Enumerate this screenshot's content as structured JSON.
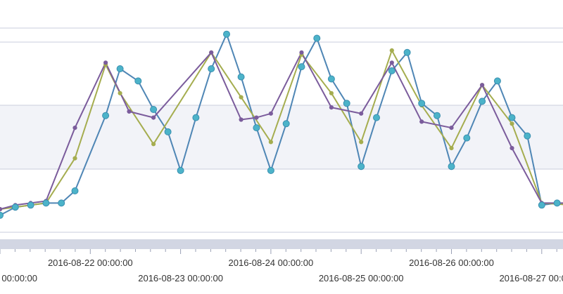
{
  "chart_data": {
    "type": "line",
    "title": "",
    "xlabel": "",
    "ylabel": "",
    "grid": true,
    "x_tick_labels": [
      {
        "text": "00:00:00",
        "time": 0,
        "row": 2
      },
      {
        "text": "2016-08-22 00:00:00",
        "time": 1.0,
        "row": 1
      },
      {
        "text": "2016-08-23 00:00:00",
        "time": 2.0,
        "row": 2
      },
      {
        "text": "2016-08-24 00:00:00",
        "time": 3.0,
        "row": 1
      },
      {
        "text": "2016-08-25 00:00:00",
        "time": 4.0,
        "row": 2
      },
      {
        "text": "2016-08-26 00:00:00",
        "time": 5.0,
        "row": 1
      },
      {
        "text": "2016-08-27 00:00:00",
        "time": 6.0,
        "row": 2
      }
    ],
    "series": [
      {
        "color": "#4f86b5",
        "marker": "large",
        "points": [
          [
            0.0,
            0.08
          ],
          [
            0.17,
            0.12
          ],
          [
            0.34,
            0.13
          ],
          [
            0.51,
            0.14
          ],
          [
            0.68,
            0.14
          ],
          [
            0.83,
            0.2
          ],
          [
            1.17,
            0.57
          ],
          [
            1.33,
            0.8
          ],
          [
            1.53,
            0.74
          ],
          [
            1.7,
            0.6
          ],
          [
            1.86,
            0.49
          ],
          [
            2.0,
            0.3
          ],
          [
            2.17,
            0.56
          ],
          [
            2.34,
            0.8
          ],
          [
            2.51,
            0.97
          ],
          [
            2.67,
            0.76
          ],
          [
            2.84,
            0.51
          ],
          [
            3.0,
            0.3
          ],
          [
            3.17,
            0.53
          ],
          [
            3.34,
            0.81
          ],
          [
            3.51,
            0.95
          ],
          [
            3.67,
            0.75
          ],
          [
            3.84,
            0.63
          ],
          [
            4.0,
            0.32
          ],
          [
            4.17,
            0.56
          ],
          [
            4.34,
            0.79
          ],
          [
            4.51,
            0.88
          ],
          [
            4.67,
            0.63
          ],
          [
            4.84,
            0.57
          ],
          [
            5.0,
            0.32
          ],
          [
            5.17,
            0.46
          ],
          [
            5.34,
            0.64
          ],
          [
            5.51,
            0.74
          ],
          [
            5.67,
            0.56
          ],
          [
            5.84,
            0.47
          ],
          [
            6.0,
            0.13
          ],
          [
            6.17,
            0.14
          ],
          [
            6.34,
            0.13
          ]
        ]
      },
      {
        "color": "#a5ad4f",
        "marker": "small",
        "points": [
          [
            0.0,
            0.11
          ],
          [
            0.17,
            0.12
          ],
          [
            0.34,
            0.13
          ],
          [
            0.51,
            0.14
          ],
          [
            0.83,
            0.36
          ],
          [
            1.17,
            0.82
          ],
          [
            1.33,
            0.68
          ],
          [
            1.7,
            0.43
          ],
          [
            2.34,
            0.88
          ],
          [
            2.67,
            0.66
          ],
          [
            3.0,
            0.44
          ],
          [
            3.34,
            0.87
          ],
          [
            3.67,
            0.68
          ],
          [
            4.0,
            0.44
          ],
          [
            4.34,
            0.89
          ],
          [
            4.67,
            0.62
          ],
          [
            5.0,
            0.41
          ],
          [
            5.34,
            0.72
          ],
          [
            5.67,
            0.53
          ],
          [
            6.0,
            0.14
          ],
          [
            6.34,
            0.13
          ]
        ]
      },
      {
        "color": "#7b5c9c",
        "marker": "small",
        "points": [
          [
            0.0,
            0.11
          ],
          [
            0.17,
            0.13
          ],
          [
            0.34,
            0.14
          ],
          [
            0.51,
            0.15
          ],
          [
            0.83,
            0.51
          ],
          [
            1.17,
            0.83
          ],
          [
            1.43,
            0.59
          ],
          [
            1.7,
            0.56
          ],
          [
            2.34,
            0.88
          ],
          [
            2.67,
            0.55
          ],
          [
            2.84,
            0.56
          ],
          [
            3.0,
            0.58
          ],
          [
            3.34,
            0.88
          ],
          [
            3.67,
            0.61
          ],
          [
            4.0,
            0.58
          ],
          [
            4.34,
            0.83
          ],
          [
            4.67,
            0.54
          ],
          [
            5.0,
            0.51
          ],
          [
            5.34,
            0.72
          ],
          [
            5.67,
            0.41
          ],
          [
            6.0,
            0.14
          ],
          [
            6.34,
            0.14
          ]
        ]
      }
    ]
  }
}
